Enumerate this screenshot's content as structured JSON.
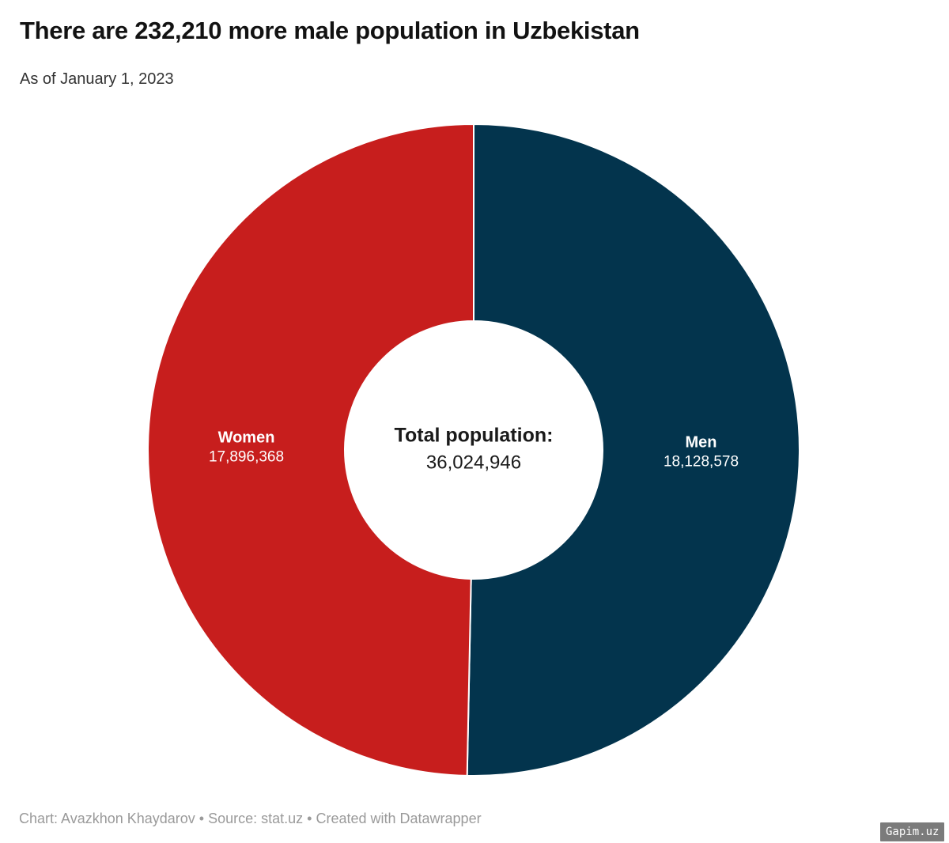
{
  "header": {
    "title": "There are 232,210 more male population in Uzbekistan",
    "subtitle": "As of January 1, 2023"
  },
  "chart_data": {
    "type": "pie",
    "variant": "donut",
    "title": "There are 232,210 more male population in Uzbekistan",
    "subtitle": "As of January 1, 2023",
    "total": 36024946,
    "male_surplus": 232210,
    "slices": [
      {
        "label": "Men",
        "value": 18128578,
        "display": "18,128,578",
        "color": "#03344d"
      },
      {
        "label": "Women",
        "value": 17896368,
        "display": "17,896,368",
        "color": "#c71e1d"
      }
    ],
    "center_label": {
      "title": "Total population:",
      "value": "36,024,946"
    },
    "start_angle_deg": 0,
    "direction": "clockwise",
    "legend": "labels-inside-slices"
  },
  "footer": {
    "credit": "Chart: Avazkhon Khaydarov • Source: stat.uz • Created with Datawrapper",
    "watermark": "Gapim.uz"
  },
  "colors": {
    "men_slice": "#03344d",
    "women_slice": "#c71e1d",
    "title_text": "#121212",
    "subtitle_text": "#333333",
    "footer_text": "#9a9a9a",
    "slice_label_text": "#ffffff",
    "watermark_bg": "#7b7b7b",
    "watermark_text": "#ffffff",
    "background": "#ffffff",
    "slice_gap": "#ffffff"
  }
}
